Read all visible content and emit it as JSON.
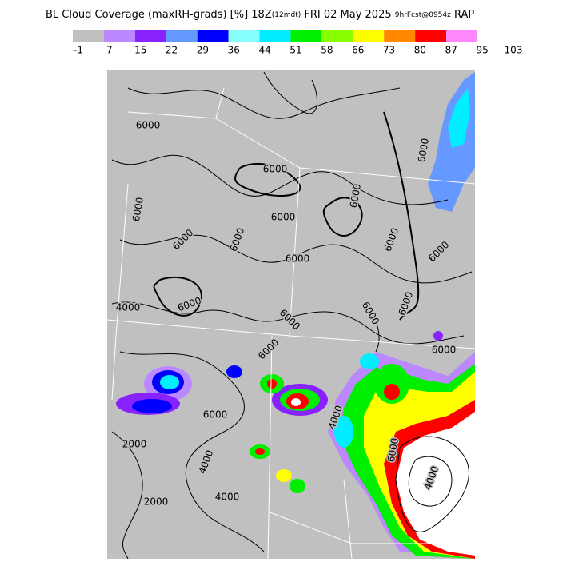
{
  "header": {
    "title_parts": [
      "BL Cloud Coverage (maxRH-grads) [%] 18Z",
      "(12mdt)",
      " FRI 02 May 2025 ",
      "9hrFcst@0954z",
      " RAP"
    ]
  },
  "legend": {
    "colors": [
      "#c0c0c0",
      "#bb88ff",
      "#8822ff",
      "#6699ff",
      "#0000ff",
      "#88ffff",
      "#00eeff",
      "#00ee00",
      "#88ff00",
      "#ffff00",
      "#ff8800",
      "#ff0000",
      "#ff88ff"
    ],
    "labels": [
      -1,
      7,
      15,
      22,
      29,
      36,
      44,
      51,
      58,
      66,
      73,
      80,
      87,
      95,
      103
    ]
  },
  "map": {
    "contour_labels": [
      "6000",
      "6000",
      "6000",
      "6000",
      "6000",
      "6000",
      "6000",
      "6000",
      "6000",
      "6000",
      "4000",
      "6000",
      "6000",
      "6000",
      "6000",
      "6000",
      "6000",
      "6000",
      "2000",
      "4000",
      "2000",
      "4000",
      "4000",
      "6000",
      "4000",
      "6000"
    ]
  }
}
